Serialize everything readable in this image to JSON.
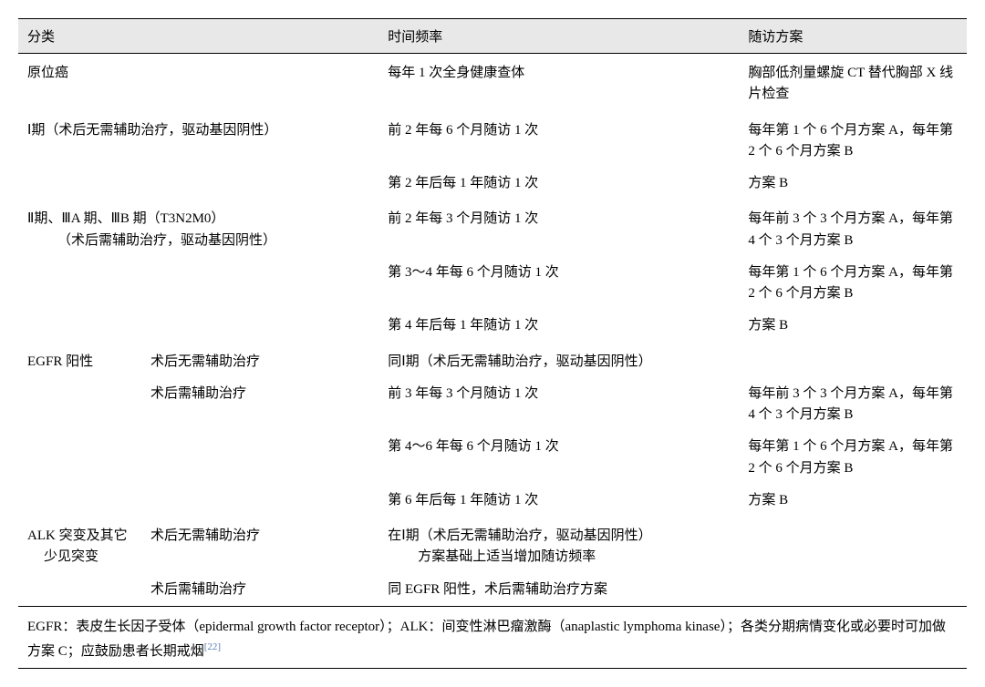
{
  "header": {
    "col1": "分类",
    "col2": "时间频率",
    "col3": "随访方案"
  },
  "rows": [
    {
      "cls": "sp",
      "cat": "原位癌",
      "time": "每年 1 次全身健康查体",
      "plan": "胸部低剂量螺旋 CT 替代胸部 X 线片检查"
    },
    {
      "cls": "sp",
      "cat": "Ⅰ期（术后无需辅助治疗，驱动基因阴性）",
      "time": "前 2 年每 6 个月随访 1 次",
      "plan": "每年第 1 个 6 个月方案 A，每年第 2 个 6 个月方案 B"
    },
    {
      "cat": "",
      "time": "第 2 年后每 1 年随访 1 次",
      "plan": "方案 B"
    },
    {
      "cls": "sp",
      "cat": "Ⅱ期、ⅢA 期、ⅢB 期（T3N2M0）",
      "catLine2": "（术后需辅助治疗，驱动基因阴性）",
      "time": "前 2 年每 3 个月随访 1 次",
      "plan": "每年前 3 个 3 个月方案 A，每年第 4 个 3 个月方案 B"
    },
    {
      "cat": "",
      "time": "第 3～4 年每 6 个月随访 1 次",
      "plan": "每年第 1 个 6 个月方案 A，每年第 2 个 6 个月方案 B"
    },
    {
      "cat": "",
      "time": "第 4 年后每 1 年随访 1 次",
      "plan": "方案 B"
    },
    {
      "cls": "sp",
      "catLeft": "EGFR 阳性",
      "catRight": "术后无需辅助治疗",
      "time": "同Ⅰ期（术后无需辅助治疗，驱动基因阴性）",
      "plan": ""
    },
    {
      "catLeft": "",
      "catRight": "术后需辅助治疗",
      "time": "前 3 年每 3 个月随访 1 次",
      "plan": "每年前 3 个 3 个月方案 A，每年第 4 个 3 个月方案 B"
    },
    {
      "cat": "",
      "time": "第 4～6 年每 6 个月随访 1 次",
      "plan": "每年第 1 个 6 个月方案 A，每年第 2 个 6 个月方案 B"
    },
    {
      "cat": "",
      "time": "第 6 年后每 1 年随访 1 次",
      "plan": "方案 B"
    },
    {
      "cls": "sp",
      "catLeft": "ALK 突变及其它",
      "catLeft2": "少见突变",
      "catRight": "术后无需辅助治疗",
      "time": "在Ⅰ期（术后无需辅助治疗，驱动基因阴性）",
      "timeLine2": "方案基础上适当增加随访频率",
      "plan": ""
    },
    {
      "catLeft": "",
      "catRight": "术后需辅助治疗",
      "time": "同 EGFR 阳性，术后需辅助治疗方案",
      "plan": ""
    }
  ],
  "footnote": {
    "text": "EGFR：表皮生长因子受体（epidermal growth factor receptor）；ALK：间变性淋巴瘤激酶（anaplastic lymphoma kinase）；各类分期病情变化或必要时可加做方案 C；应鼓励患者长期戒烟",
    "ref": "[22]"
  }
}
